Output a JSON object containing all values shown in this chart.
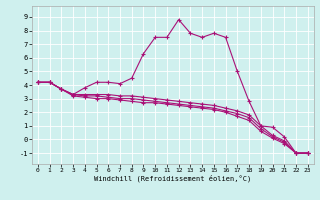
{
  "xlabel": "Windchill (Refroidissement éolien,°C)",
  "background_color": "#cff0ee",
  "grid_color": "#ffffff",
  "line_color": "#aa1177",
  "xlim": [
    -0.5,
    23.5
  ],
  "ylim": [
    -1.8,
    9.8
  ],
  "xticks": [
    0,
    1,
    2,
    3,
    4,
    5,
    6,
    7,
    8,
    9,
    10,
    11,
    12,
    13,
    14,
    15,
    16,
    17,
    18,
    19,
    20,
    21,
    22,
    23
  ],
  "yticks": [
    -1,
    0,
    1,
    2,
    3,
    4,
    5,
    6,
    7,
    8,
    9
  ],
  "line1_x": [
    0,
    1,
    2,
    3,
    4,
    5,
    6,
    7,
    8,
    9,
    10,
    11,
    12,
    13,
    14,
    15,
    16,
    17,
    18,
    19,
    20,
    21,
    22,
    23
  ],
  "line1_y": [
    4.2,
    4.2,
    3.7,
    3.3,
    3.8,
    4.2,
    4.2,
    4.1,
    4.5,
    6.3,
    7.5,
    7.5,
    8.8,
    7.8,
    7.5,
    7.8,
    7.5,
    5.0,
    2.8,
    1.0,
    0.9,
    0.2,
    -1.0,
    -1.0
  ],
  "line2_x": [
    0,
    1,
    2,
    3,
    4,
    5,
    6,
    7,
    8,
    9,
    10,
    11,
    12,
    13,
    14,
    15,
    16,
    17,
    18,
    19,
    20,
    21,
    22,
    23
  ],
  "line2_y": [
    4.2,
    4.2,
    3.7,
    3.3,
    3.3,
    3.3,
    3.3,
    3.2,
    3.2,
    3.1,
    3.0,
    2.9,
    2.8,
    2.7,
    2.6,
    2.5,
    2.3,
    2.1,
    1.8,
    1.0,
    0.3,
    -0.1,
    -1.0,
    -1.0
  ],
  "line3_x": [
    0,
    1,
    2,
    3,
    4,
    5,
    6,
    7,
    8,
    9,
    10,
    11,
    12,
    13,
    14,
    15,
    16,
    17,
    18,
    19,
    20,
    21,
    22,
    23
  ],
  "line3_y": [
    4.2,
    4.2,
    3.7,
    3.3,
    3.2,
    3.2,
    3.1,
    3.0,
    3.0,
    2.9,
    2.8,
    2.7,
    2.6,
    2.5,
    2.4,
    2.3,
    2.1,
    1.9,
    1.6,
    0.8,
    0.2,
    -0.2,
    -1.0,
    -1.0
  ],
  "line4_x": [
    0,
    1,
    2,
    3,
    4,
    5,
    6,
    7,
    8,
    9,
    10,
    11,
    12,
    13,
    14,
    15,
    16,
    17,
    18,
    19,
    20,
    21,
    22,
    23
  ],
  "line4_y": [
    4.2,
    4.2,
    3.7,
    3.2,
    3.1,
    3.0,
    3.0,
    2.9,
    2.8,
    2.7,
    2.7,
    2.6,
    2.5,
    2.4,
    2.3,
    2.2,
    2.0,
    1.7,
    1.4,
    0.6,
    0.1,
    -0.3,
    -1.0,
    -1.0
  ]
}
